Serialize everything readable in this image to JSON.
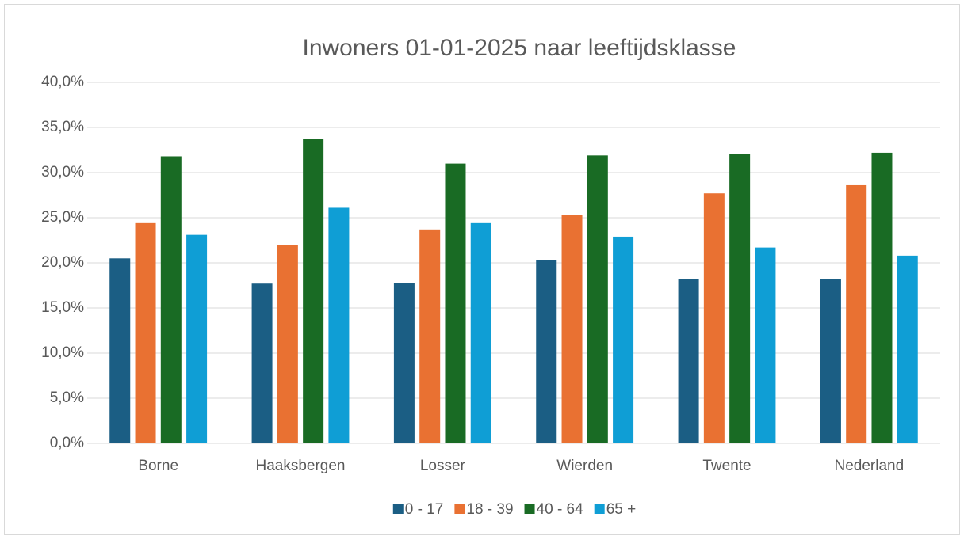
{
  "chart_data": {
    "type": "bar",
    "title": "Inwoners 01-01-2025 naar leeftijdsklasse",
    "categories": [
      "Borne",
      "Haaksbergen",
      "Losser",
      "Wierden",
      "Twente",
      "Nederland"
    ],
    "series": [
      {
        "name": "0 - 17",
        "color": "#1b5e84",
        "values": [
          20.5,
          17.7,
          17.8,
          20.3,
          18.2,
          18.2
        ]
      },
      {
        "name": "18 - 39",
        "color": "#e97132",
        "values": [
          24.4,
          22.0,
          23.7,
          25.3,
          27.7,
          28.6
        ]
      },
      {
        "name": "40 - 64",
        "color": "#196b24",
        "values": [
          31.8,
          33.7,
          31.0,
          31.9,
          32.1,
          32.2
        ]
      },
      {
        "name": "65 +",
        "color": "#0f9ed5",
        "values": [
          23.1,
          26.1,
          24.4,
          22.9,
          21.7,
          20.8
        ]
      }
    ],
    "ylim": [
      0,
      40
    ],
    "yticks": [
      {
        "value": 0,
        "label": "0,0%"
      },
      {
        "value": 5,
        "label": "5,0%"
      },
      {
        "value": 10,
        "label": "10,0%"
      },
      {
        "value": 15,
        "label": "15,0%"
      },
      {
        "value": 20,
        "label": "20,0%"
      },
      {
        "value": 25,
        "label": "25,0%"
      },
      {
        "value": 30,
        "label": "30,0%"
      },
      {
        "value": 35,
        "label": "35,0%"
      },
      {
        "value": 40,
        "label": "40,0%"
      }
    ],
    "grid": true,
    "legend": "bottom"
  }
}
